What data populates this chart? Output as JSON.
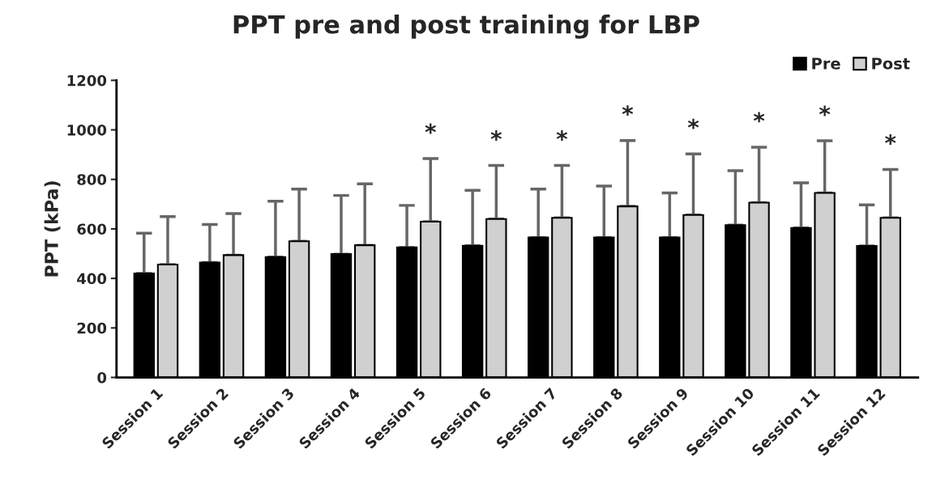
{
  "chart_data": {
    "type": "bar",
    "title": "PPT pre and post training for LBP",
    "ylabel": "PPT (kPa)",
    "categories": [
      "Session 1",
      "Session 2",
      "Session 3",
      "Session 4",
      "Session 5",
      "Session 6",
      "Session 7",
      "Session 8",
      "Session 9",
      "Session 10",
      "Session 11",
      "Session 12"
    ],
    "series": [
      {
        "name": "Pre",
        "color": "#000000",
        "values": [
          420,
          464,
          486,
          498,
          525,
          532,
          565,
          565,
          565,
          615,
          604,
          531
        ],
        "errors": [
          [
            420,
            583
          ],
          [
            464,
            618
          ],
          [
            486,
            712
          ],
          [
            498,
            735
          ],
          [
            525,
            695
          ],
          [
            532,
            756
          ],
          [
            565,
            761
          ],
          [
            565,
            773
          ],
          [
            565,
            745
          ],
          [
            615,
            835
          ],
          [
            604,
            786
          ],
          [
            531,
            697
          ]
        ]
      },
      {
        "name": "Post",
        "color": "#d0d0d0",
        "values": [
          456,
          494,
          550,
          534,
          629,
          640,
          645,
          691,
          656,
          706,
          745,
          645
        ],
        "errors": [
          [
            456,
            650
          ],
          [
            494,
            662
          ],
          [
            550,
            761
          ],
          [
            534,
            782
          ],
          [
            629,
            884
          ],
          [
            640,
            856
          ],
          [
            645,
            856
          ],
          [
            691,
            957
          ],
          [
            656,
            903
          ],
          [
            706,
            930
          ],
          [
            745,
            956
          ],
          [
            645,
            840
          ]
        ]
      }
    ],
    "annotations": [
      "*",
      "*",
      "*",
      "*",
      "*",
      "*",
      "*",
      "*"
    ],
    "ylim": [
      0,
      1200
    ],
    "yticks": [
      0,
      200,
      400,
      600,
      800,
      1000,
      1200
    ],
    "grid": false,
    "legend": "top right"
  }
}
